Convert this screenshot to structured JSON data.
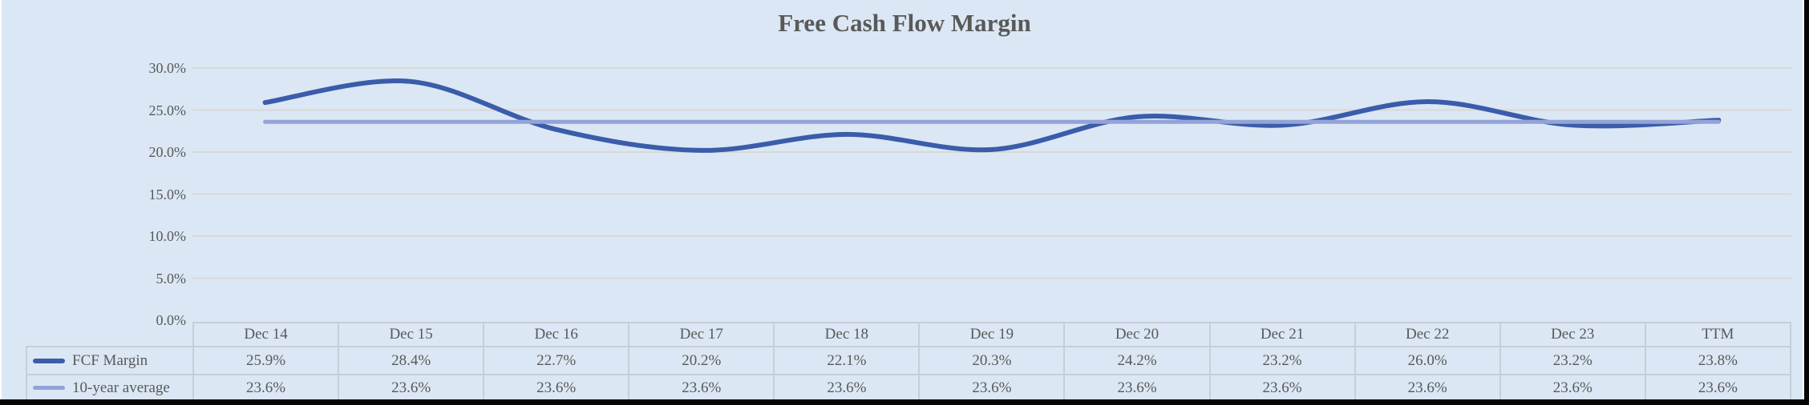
{
  "chart_data": {
    "type": "line",
    "title": "Free Cash Flow Margin",
    "categories": [
      "Dec 14",
      "Dec 15",
      "Dec 16",
      "Dec 17",
      "Dec 18",
      "Dec 19",
      "Dec 20",
      "Dec 21",
      "Dec 22",
      "Dec 23",
      "TTM"
    ],
    "series": [
      {
        "name": "FCF Margin",
        "style": "smooth",
        "color": "#3b5caa",
        "values": [
          25.9,
          28.4,
          22.7,
          20.2,
          22.1,
          20.3,
          24.2,
          23.2,
          26.0,
          23.2,
          23.8
        ]
      },
      {
        "name": "10-year average",
        "style": "straight",
        "color": "#93a3d8",
        "values": [
          23.6,
          23.6,
          23.6,
          23.6,
          23.6,
          23.6,
          23.6,
          23.6,
          23.6,
          23.6,
          23.6
        ]
      }
    ],
    "ylim": [
      0,
      30
    ],
    "ytick_step": 5,
    "y_axis_labels": [
      "0.0%",
      "5.0%",
      "10.0%",
      "15.0%",
      "20.0%",
      "25.0%",
      "30.0%"
    ],
    "grid": "horizontal",
    "legend_position": "table-left",
    "data_table": {
      "rows": [
        {
          "label": "FCF Margin",
          "cells": [
            "25.9%",
            "28.4%",
            "22.7%",
            "20.2%",
            "22.1%",
            "20.3%",
            "24.2%",
            "23.2%",
            "26.0%",
            "23.2%",
            "23.8%"
          ]
        },
        {
          "label": "10-year average",
          "cells": [
            "23.6%",
            "23.6%",
            "23.6%",
            "23.6%",
            "23.6%",
            "23.6%",
            "23.6%",
            "23.6%",
            "23.6%",
            "23.6%",
            "23.6%"
          ]
        }
      ]
    },
    "colors": {
      "background": "#dbe7f4",
      "gridline": "#d8d8d4",
      "text": "#595959",
      "table_border": "#c8ced8",
      "window_edge": "#060606"
    }
  }
}
